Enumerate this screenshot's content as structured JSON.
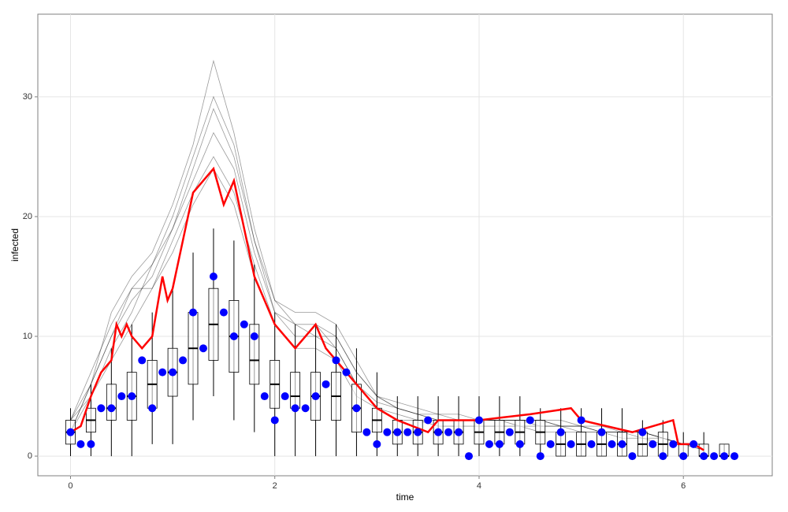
{
  "chart_data": {
    "type": "simulation",
    "xlabel": "time",
    "ylabel": "infected",
    "xlim": [
      -0.32,
      6.87
    ],
    "ylim": [
      -1.64,
      36.9
    ],
    "xticks": [
      0,
      2,
      4,
      6
    ],
    "yticks": [
      0,
      10,
      20,
      30
    ],
    "grid": true,
    "simulations": {
      "color": "#000000",
      "x": [
        0,
        0.2,
        0.4,
        0.6,
        0.8,
        1.0,
        1.2,
        1.4,
        1.6,
        1.8,
        2.0,
        2.2,
        2.4,
        2.6,
        2.8,
        3.0,
        3.2,
        3.4,
        3.6,
        3.8,
        4.0,
        4.2,
        4.4,
        4.6,
        4.8,
        5.0,
        5.2,
        5.4,
        5.6,
        5.8,
        6.0,
        6.2
      ],
      "series": [
        {
          "values": [
            3,
            6,
            10,
            13,
            15,
            19,
            23,
            27,
            24,
            17,
            12,
            10,
            10,
            9,
            6,
            4.5,
            4,
            3.5,
            3,
            3,
            3,
            3,
            3,
            3,
            2.5,
            2.5,
            2,
            2,
            2,
            1.5,
            1,
            1
          ]
        },
        {
          "values": [
            2,
            5,
            9,
            12,
            16,
            20,
            25,
            30,
            26,
            18,
            13,
            11,
            10,
            10,
            7,
            5,
            4,
            3.5,
            3.5,
            3,
            3,
            3,
            2.5,
            2.5,
            2.5,
            2,
            2,
            2,
            1.5,
            1.5,
            1,
            1
          ]
        },
        {
          "values": [
            3,
            7,
            11,
            14,
            14,
            18,
            22,
            25,
            22,
            16,
            11,
            9,
            11,
            9,
            6,
            4,
            3.5,
            3,
            3,
            3,
            3,
            3,
            3,
            2.5,
            2.5,
            2.5,
            2,
            2,
            2,
            1.5,
            1,
            0.5
          ]
        },
        {
          "values": [
            2,
            6,
            12,
            15,
            17,
            21,
            26,
            33,
            27,
            19,
            13,
            12,
            12,
            11,
            8,
            5,
            4.5,
            4,
            3.5,
            3.5,
            3,
            3,
            3,
            3,
            3,
            2.5,
            2.5,
            2,
            2,
            1.5,
            1,
            1
          ]
        },
        {
          "values": [
            3,
            5,
            8,
            11,
            14,
            17,
            21,
            24,
            21,
            15,
            11,
            9,
            9,
            8,
            5,
            4,
            3,
            3,
            2.5,
            2.5,
            2.5,
            2.5,
            2.5,
            2,
            2,
            2,
            2,
            1.5,
            1.5,
            1,
            1,
            0.5
          ]
        },
        {
          "values": [
            2,
            6,
            10,
            14,
            16,
            19,
            24,
            29,
            25,
            18,
            12,
            11,
            11,
            10,
            7,
            5,
            4,
            3.5,
            3,
            3,
            3,
            3,
            3,
            3,
            2.5,
            2.5,
            2,
            2,
            2,
            1.5,
            1,
            1
          ]
        }
      ]
    },
    "boxes": {
      "x": [
        0,
        0.2,
        0.4,
        0.6,
        0.8,
        1.0,
        1.2,
        1.4,
        1.6,
        1.8,
        2.0,
        2.2,
        2.4,
        2.6,
        2.8,
        3.0,
        3.2,
        3.4,
        3.6,
        3.8,
        4.0,
        4.2,
        4.4,
        4.6,
        4.8,
        5.0,
        5.2,
        5.4,
        5.6,
        5.8,
        6.0,
        6.2,
        6.4
      ],
      "whislo": [
        0,
        0,
        0,
        0,
        1,
        1,
        3,
        5,
        3,
        2,
        0,
        0,
        0,
        0,
        0,
        0,
        0,
        0,
        0,
        0,
        0,
        0,
        0,
        0,
        0,
        0,
        0,
        0,
        0,
        0,
        0,
        0,
        0
      ],
      "q1": [
        1,
        2,
        3,
        3,
        4,
        5,
        6,
        8,
        7,
        6,
        4,
        4,
        3,
        3,
        2,
        2,
        1,
        1,
        1,
        1,
        1,
        1,
        1,
        1,
        0,
        0,
        0,
        0,
        0,
        0,
        0,
        0,
        0
      ],
      "med": [
        2,
        3,
        4,
        5,
        6,
        7,
        9,
        11,
        10,
        8,
        6,
        5,
        5,
        5,
        4,
        3,
        2,
        2,
        2,
        2,
        2,
        2,
        2,
        2,
        1,
        1,
        1,
        1,
        1,
        1,
        1,
        0,
        0
      ],
      "q3": [
        3,
        4,
        6,
        7,
        8,
        9,
        12,
        14,
        13,
        11,
        8,
        7,
        7,
        7,
        6,
        4,
        3,
        3,
        3,
        3,
        3,
        3,
        3,
        3,
        2,
        2,
        2,
        2,
        2,
        2,
        1,
        1,
        1
      ],
      "whishi": [
        4,
        6,
        9,
        11,
        12,
        14,
        17,
        19,
        18,
        16,
        12,
        11,
        11,
        11,
        9,
        7,
        5,
        5,
        5,
        5,
        5,
        5,
        5,
        4,
        4,
        4,
        4,
        4,
        3,
        3,
        2,
        2,
        1
      ]
    },
    "red": {
      "color": "#ff0000",
      "x": [
        0,
        0.1,
        0.2,
        0.3,
        0.4,
        0.45,
        0.5,
        0.55,
        0.6,
        0.7,
        0.8,
        0.9,
        0.95,
        1.0,
        1.1,
        1.2,
        1.3,
        1.4,
        1.5,
        1.6,
        1.7,
        1.8,
        1.9,
        2.0,
        2.2,
        2.4,
        2.5,
        2.6,
        2.7,
        2.8,
        3.0,
        3.2,
        3.5,
        3.6,
        4.0,
        4.5,
        4.9,
        5.0,
        5.5,
        5.9,
        5.95,
        6.1,
        6.2
      ],
      "values": [
        2,
        2.5,
        5,
        7,
        8,
        11,
        10,
        11,
        10,
        9,
        10,
        15,
        13,
        14,
        18,
        22,
        23,
        24,
        21,
        23,
        19,
        15,
        13,
        11,
        9,
        11,
        9,
        8,
        7,
        6,
        4,
        3,
        2,
        3,
        3,
        3.5,
        4,
        3,
        2,
        3,
        1,
        1,
        0.5
      ]
    },
    "points": {
      "color": "#0000ff",
      "x": [
        0,
        0.1,
        0.2,
        0.3,
        0.4,
        0.5,
        0.6,
        0.7,
        0.8,
        0.9,
        1.0,
        1.1,
        1.2,
        1.3,
        1.4,
        1.5,
        1.6,
        1.7,
        1.8,
        1.9,
        2.0,
        2.1,
        2.2,
        2.3,
        2.4,
        2.5,
        2.6,
        2.7,
        2.8,
        2.9,
        3.0,
        3.1,
        3.2,
        3.3,
        3.4,
        3.5,
        3.6,
        3.7,
        3.8,
        3.9,
        4.0,
        4.1,
        4.2,
        4.3,
        4.4,
        4.5,
        4.6,
        4.7,
        4.8,
        4.9,
        5.0,
        5.1,
        5.2,
        5.3,
        5.4,
        5.5,
        5.6,
        5.7,
        5.8,
        5.9,
        6.0,
        6.1,
        6.2,
        6.3,
        6.4,
        6.5
      ],
      "values": [
        2,
        1,
        1,
        4,
        4,
        5,
        5,
        8,
        4,
        7,
        7,
        8,
        12,
        9,
        15,
        12,
        10,
        11,
        10,
        5,
        3,
        5,
        4,
        4,
        5,
        6,
        8,
        7,
        4,
        2,
        1,
        2,
        2,
        2,
        2,
        3,
        2,
        2,
        2,
        0,
        3,
        1,
        1,
        2,
        1,
        3,
        0,
        1,
        2,
        1,
        3,
        1,
        2,
        1,
        1,
        0,
        2,
        1,
        0,
        1,
        0,
        1,
        0,
        0,
        0,
        0
      ]
    }
  }
}
